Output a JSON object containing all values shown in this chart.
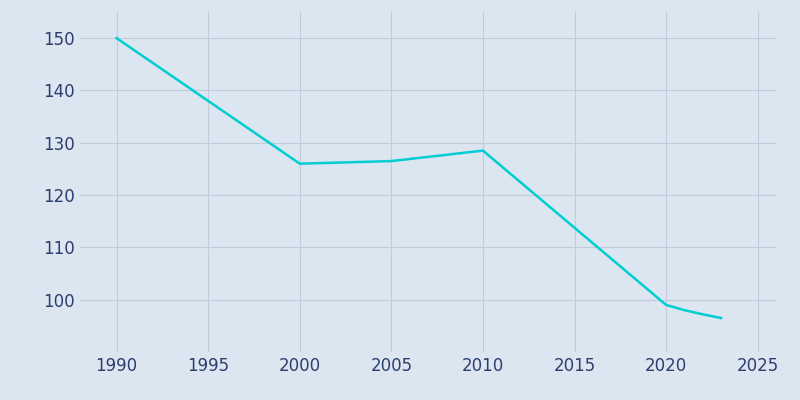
{
  "years": [
    1990,
    2000,
    2005,
    2010,
    2020,
    2021,
    2022,
    2023
  ],
  "values": [
    150,
    126,
    126.5,
    128.5,
    99,
    98,
    97.2,
    96.5
  ],
  "line_color": "#00CED1",
  "bg_color": "#dce6f0",
  "axes_bg_color": "#dce6f0",
  "grid_color": "#c0ccdc",
  "tick_color": "#2c3e6e",
  "xlim": [
    1988,
    2026
  ],
  "ylim": [
    90,
    155
  ],
  "xticks": [
    1990,
    1995,
    2000,
    2005,
    2010,
    2015,
    2020,
    2025
  ],
  "yticks": [
    100,
    110,
    120,
    130,
    140,
    150
  ],
  "linewidth": 1.8,
  "tick_labelsize": 12
}
